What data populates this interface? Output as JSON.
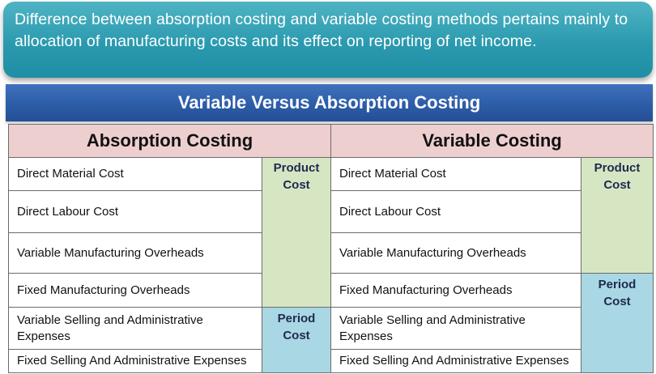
{
  "intro": "Difference between absorption costing and variable costing methods pertains mainly to allocation of manufacturing costs and its effect on reporting of net income.",
  "title": "Variable Versus Absorption Costing",
  "absorption": {
    "heading": "Absorption Costing",
    "items": [
      "Direct Material Cost",
      "Direct Labour Cost",
      "Variable Manufacturing Overheads",
      "Fixed Manufacturing Overheads",
      "Variable Selling and Administrative Expenses",
      "Fixed Selling And Administrative Expenses"
    ],
    "product_label": "Product Cost",
    "period_label": "Period Cost"
  },
  "variable": {
    "heading": "Variable Costing",
    "items": [
      "Direct Material Cost",
      "Direct Labour Cost",
      "Variable Manufacturing Overheads",
      "Fixed Manufacturing Overheads",
      "Variable Selling and Administrative Expenses",
      "Fixed Selling And Administrative Expenses"
    ],
    "product_label": "Product Cost",
    "period_label": "Period Cost"
  },
  "colors": {
    "banner": "#2b9aaf",
    "title_bar": "#2c5ba6",
    "header_fill": "#eecfcf",
    "product_fill": "#d6e6c3",
    "period_fill": "#a9d7e4"
  }
}
